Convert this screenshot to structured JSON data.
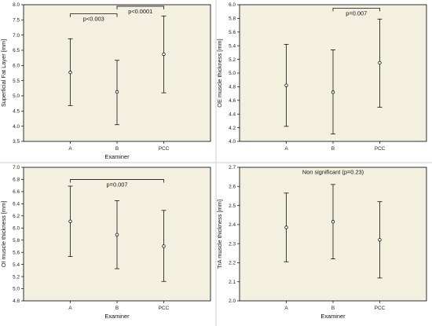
{
  "chart_data": [
    {
      "type": "errorbar",
      "xlabel": "Examiner",
      "ylabel": "Superficial Fat Layer [mm]",
      "categories": [
        "A",
        "B",
        "PCC"
      ],
      "ylim": [
        3.5,
        8.0
      ],
      "yticks": [
        "3.5",
        "4.0",
        "4.5",
        "5.0",
        "5.5",
        "6.0",
        "6.5",
        "7.0",
        "7.5",
        "8.0"
      ],
      "ytick_values": [
        3.5,
        4.0,
        4.5,
        5.0,
        5.5,
        6.0,
        6.5,
        7.0,
        7.5,
        8.0
      ],
      "points": [
        {
          "category": "A",
          "mean": 5.77,
          "low": 4.68,
          "high": 6.88
        },
        {
          "category": "B",
          "mean": 5.13,
          "low": 4.05,
          "high": 6.17
        },
        {
          "category": "PCC",
          "mean": 6.37,
          "low": 5.1,
          "high": 7.63
        }
      ],
      "annotations": [
        {
          "text": "p<0.003",
          "from": "A",
          "to": "B",
          "y": 7.7
        },
        {
          "text": "p<0.0001",
          "from": "B",
          "to": "PCC",
          "y": 7.95
        }
      ]
    },
    {
      "type": "errorbar",
      "xlabel": "",
      "ylabel": "OE muscle thickness [mm]",
      "categories": [
        "A",
        "B",
        "PCC"
      ],
      "ylim": [
        4.0,
        6.0
      ],
      "yticks": [
        "4.0",
        "4.2",
        "4.4",
        "4.6",
        "4.8",
        "5.0",
        "5.2",
        "5.4",
        "5.6",
        "5.8",
        "6.0"
      ],
      "ytick_values": [
        4.0,
        4.2,
        4.4,
        4.6,
        4.8,
        5.0,
        5.2,
        5.4,
        5.6,
        5.8,
        6.0
      ],
      "points": [
        {
          "category": "A",
          "mean": 4.82,
          "low": 4.22,
          "high": 5.42
        },
        {
          "category": "B",
          "mean": 4.72,
          "low": 4.11,
          "high": 5.34
        },
        {
          "category": "PCC",
          "mean": 5.15,
          "low": 4.5,
          "high": 5.79
        }
      ],
      "annotations": [
        {
          "text": "p=0.007",
          "from": "B",
          "to": "PCC",
          "y": 5.95
        }
      ]
    },
    {
      "type": "errorbar",
      "xlabel": "Examiner",
      "ylabel": "OI muscle thickness [mm]",
      "categories": [
        "A",
        "B",
        "PCC"
      ],
      "ylim": [
        4.8,
        7.0
      ],
      "yticks": [
        "4.8",
        "5.0",
        "5.2",
        "5.4",
        "5.6",
        "5.8",
        "6.0",
        "6.2",
        "6.4",
        "6.6",
        "6.8",
        "7.0"
      ],
      "ytick_values": [
        4.8,
        5.0,
        5.2,
        5.4,
        5.6,
        5.8,
        6.0,
        6.2,
        6.4,
        6.6,
        6.8,
        7.0
      ],
      "points": [
        {
          "category": "A",
          "mean": 6.11,
          "low": 5.53,
          "high": 6.69
        },
        {
          "category": "B",
          "mean": 5.89,
          "low": 5.33,
          "high": 6.45
        },
        {
          "category": "PCC",
          "mean": 5.7,
          "low": 5.12,
          "high": 6.29
        }
      ],
      "annotations": [
        {
          "text": "p=0.007",
          "from": "A",
          "to": "PCC",
          "y": 6.8
        }
      ]
    },
    {
      "type": "errorbar",
      "xlabel": "Examiner",
      "ylabel": "TrA muscle thickness [mm]",
      "categories": [
        "A",
        "B",
        "PCC"
      ],
      "ylim": [
        2.0,
        2.7
      ],
      "yticks": [
        "2.0",
        "2.1",
        "2.2",
        "2.3",
        "2.4",
        "2.5",
        "2.6",
        "2.7"
      ],
      "ytick_values": [
        2.0,
        2.1,
        2.2,
        2.3,
        2.4,
        2.5,
        2.6,
        2.7
      ],
      "points": [
        {
          "category": "A",
          "mean": 2.385,
          "low": 2.205,
          "high": 2.565
        },
        {
          "category": "B",
          "mean": 2.415,
          "low": 2.22,
          "high": 2.61
        },
        {
          "category": "PCC",
          "mean": 2.32,
          "low": 2.12,
          "high": 2.52
        }
      ],
      "annotations": [
        {
          "text": "Non significant (p=0.23)",
          "free": true,
          "x": "B",
          "y": 2.665
        }
      ]
    }
  ]
}
